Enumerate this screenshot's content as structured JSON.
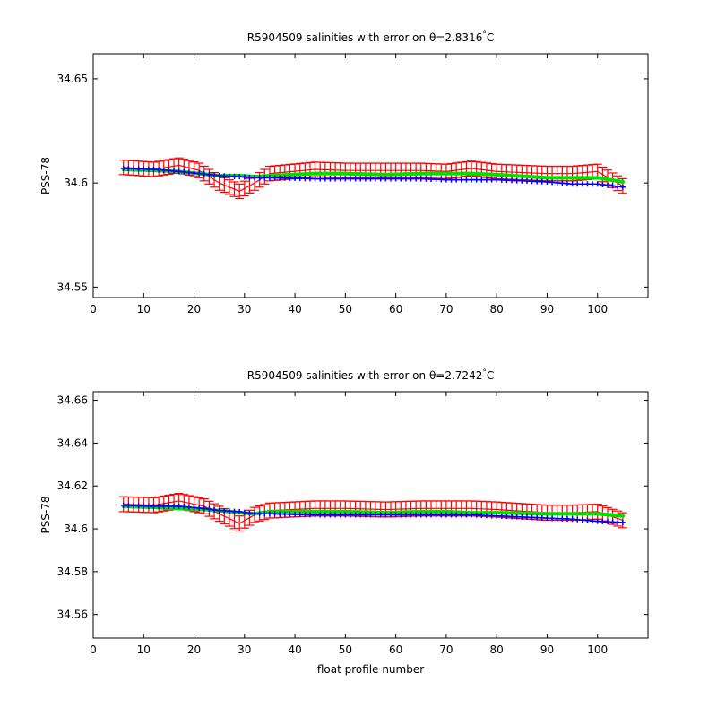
{
  "chart_data": [
    {
      "type": "line",
      "title": "R5904509 salinities with error on θ=2.8316",
      "title_degree": "°",
      "title_unit": "C",
      "xlabel": "",
      "ylabel": "PSS-78",
      "xlim": [
        0,
        110
      ],
      "ylim": [
        34.545,
        34.662
      ],
      "xticks": [
        0,
        10,
        20,
        30,
        40,
        50,
        60,
        70,
        80,
        90,
        100
      ],
      "xtick_labels": [
        "0",
        "10",
        "20",
        "30",
        "40",
        "50",
        "60",
        "70",
        "80",
        "90",
        "100"
      ],
      "yticks": [
        34.55,
        34.6,
        34.65
      ],
      "ytick_labels": [
        "34.55",
        "34.6",
        "34.65"
      ],
      "grid": false,
      "x_range": [
        6,
        105
      ],
      "series": [
        {
          "color": "#ff0000",
          "style": "errorbar",
          "anchors": [
            [
              6,
              34.6075
            ],
            [
              12,
              34.6065
            ],
            [
              17,
              34.6085
            ],
            [
              21,
              34.606
            ],
            [
              25,
              34.6
            ],
            [
              29,
              34.596
            ],
            [
              32,
              34.6
            ],
            [
              35,
              34.6045
            ],
            [
              44,
              34.6065
            ],
            [
              50,
              34.606
            ],
            [
              58,
              34.606
            ],
            [
              65,
              34.606
            ],
            [
              70,
              34.6055
            ],
            [
              75,
              34.607
            ],
            [
              80,
              34.6055
            ],
            [
              90,
              34.6045
            ],
            [
              95,
              34.6045
            ],
            [
              100,
              34.6055
            ],
            [
              105,
              34.5985
            ]
          ],
          "error": 0.0035
        },
        {
          "color": "#00e000",
          "style": "line",
          "anchors": [
            [
              6,
              34.6065
            ],
            [
              12,
              34.606
            ],
            [
              17,
              34.6055
            ],
            [
              21,
              34.6045
            ],
            [
              25,
              34.6035
            ],
            [
              29,
              34.6035
            ],
            [
              32,
              34.603
            ],
            [
              35,
              34.6035
            ],
            [
              44,
              34.6045
            ],
            [
              50,
              34.6045
            ],
            [
              58,
              34.604
            ],
            [
              65,
              34.6045
            ],
            [
              70,
              34.6045
            ],
            [
              75,
              34.6045
            ],
            [
              80,
              34.604
            ],
            [
              90,
              34.6025
            ],
            [
              95,
              34.6025
            ],
            [
              100,
              34.6025
            ],
            [
              105,
              34.6005
            ]
          ]
        },
        {
          "color": "#0000ff",
          "style": "marker",
          "anchors": [
            [
              6,
              34.607
            ],
            [
              12,
              34.6065
            ],
            [
              17,
              34.6055
            ],
            [
              21,
              34.6045
            ],
            [
              25,
              34.6035
            ],
            [
              29,
              34.603
            ],
            [
              32,
              34.6025
            ],
            [
              35,
              34.6025
            ],
            [
              44,
              34.602
            ],
            [
              50,
              34.602
            ],
            [
              58,
              34.602
            ],
            [
              65,
              34.602
            ],
            [
              70,
              34.6015
            ],
            [
              75,
              34.6015
            ],
            [
              80,
              34.6015
            ],
            [
              90,
              34.6005
            ],
            [
              95,
              34.5995
            ],
            [
              100,
              34.5995
            ],
            [
              105,
              34.598
            ]
          ]
        }
      ]
    },
    {
      "type": "line",
      "title": "R5904509 salinities with error on θ=2.7242",
      "title_degree": "°",
      "title_unit": "C",
      "xlabel": "float profile number",
      "ylabel": "PSS-78",
      "xlim": [
        0,
        110
      ],
      "ylim": [
        34.549,
        34.664
      ],
      "xticks": [
        0,
        10,
        20,
        30,
        40,
        50,
        60,
        70,
        80,
        90,
        100
      ],
      "xtick_labels": [
        "0",
        "10",
        "20",
        "30",
        "40",
        "50",
        "60",
        "70",
        "80",
        "90",
        "100"
      ],
      "yticks": [
        34.56,
        34.58,
        34.6,
        34.62,
        34.64,
        34.66
      ],
      "ytick_labels": [
        "34.56",
        "34.58",
        "34.6",
        "34.62",
        "34.64",
        "34.66"
      ],
      "grid": false,
      "x_range": [
        6,
        105
      ],
      "series": [
        {
          "color": "#ff0000",
          "style": "errorbar",
          "anchors": [
            [
              6,
              34.6115
            ],
            [
              12,
              34.611
            ],
            [
              17,
              34.613
            ],
            [
              22,
              34.6105
            ],
            [
              25,
              34.607
            ],
            [
              29,
              34.6025
            ],
            [
              32,
              34.6065
            ],
            [
              35,
              34.6085
            ],
            [
              44,
              34.6095
            ],
            [
              50,
              34.6095
            ],
            [
              58,
              34.609
            ],
            [
              65,
              34.6095
            ],
            [
              70,
              34.6095
            ],
            [
              75,
              34.6095
            ],
            [
              80,
              34.609
            ],
            [
              90,
              34.6075
            ],
            [
              95,
              34.6075
            ],
            [
              100,
              34.608
            ],
            [
              105,
              34.604
            ]
          ],
          "error": 0.0035
        },
        {
          "color": "#00e000",
          "style": "line",
          "anchors": [
            [
              6,
              34.6105
            ],
            [
              12,
              34.61
            ],
            [
              17,
              34.6095
            ],
            [
              22,
              34.609
            ],
            [
              25,
              34.6085
            ],
            [
              29,
              34.6075
            ],
            [
              32,
              34.607
            ],
            [
              35,
              34.608
            ],
            [
              44,
              34.608
            ],
            [
              50,
              34.608
            ],
            [
              58,
              34.6075
            ],
            [
              65,
              34.608
            ],
            [
              70,
              34.608
            ],
            [
              75,
              34.6075
            ],
            [
              80,
              34.6075
            ],
            [
              90,
              34.607
            ],
            [
              95,
              34.607
            ],
            [
              100,
              34.607
            ],
            [
              105,
              34.606
            ]
          ]
        },
        {
          "color": "#0000ff",
          "style": "marker",
          "anchors": [
            [
              6,
              34.611
            ],
            [
              12,
              34.6105
            ],
            [
              17,
              34.6105
            ],
            [
              22,
              34.6095
            ],
            [
              25,
              34.6085
            ],
            [
              29,
              34.608
            ],
            [
              32,
              34.607
            ],
            [
              35,
              34.607
            ],
            [
              44,
              34.6065
            ],
            [
              50,
              34.6065
            ],
            [
              58,
              34.6065
            ],
            [
              65,
              34.6065
            ],
            [
              70,
              34.6065
            ],
            [
              75,
              34.6065
            ],
            [
              80,
              34.606
            ],
            [
              90,
              34.605
            ],
            [
              95,
              34.6045
            ],
            [
              100,
              34.6035
            ],
            [
              105,
              34.603
            ]
          ]
        }
      ]
    }
  ]
}
